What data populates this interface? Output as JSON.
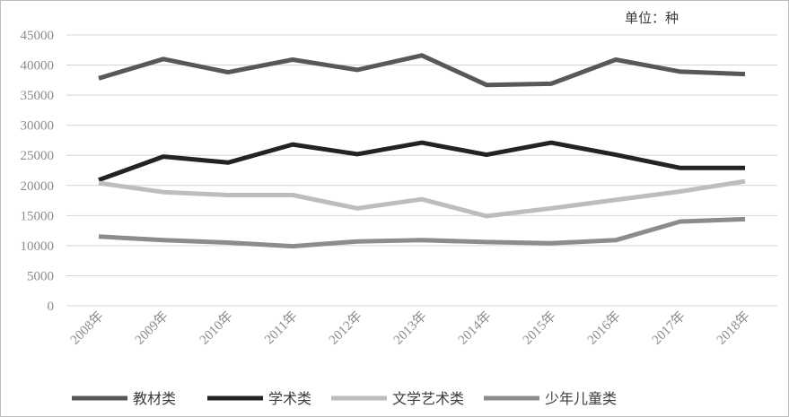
{
  "chart_data": {
    "type": "line",
    "title": "",
    "unit_label": "单位：种",
    "xlabel": "",
    "ylabel": "",
    "ylim": [
      0,
      45000
    ],
    "yticks": [
      0,
      5000,
      10000,
      15000,
      20000,
      25000,
      30000,
      35000,
      40000,
      45000
    ],
    "grid": true,
    "legend_position": "bottom",
    "categories": [
      "2008年",
      "2009年",
      "2010年",
      "2011年",
      "2012年",
      "2013年",
      "2014年",
      "2015年",
      "2016年",
      "2017年",
      "2018年"
    ],
    "series": [
      {
        "name": "教材类",
        "color": "#58585a",
        "values": [
          37800,
          41000,
          38800,
          40900,
          39200,
          41600,
          36700,
          36900,
          40900,
          38900,
          38500
        ]
      },
      {
        "name": "学术类",
        "color": "#232323",
        "values": [
          20900,
          24800,
          23800,
          26800,
          25200,
          27100,
          25100,
          27100,
          25100,
          22900,
          22900
        ]
      },
      {
        "name": "文学艺术类",
        "color": "#bdbdbd",
        "values": [
          20400,
          18900,
          18400,
          18400,
          16200,
          17700,
          14900,
          16200,
          17600,
          19000,
          20700
        ]
      },
      {
        "name": "少年儿童类",
        "color": "#8c8c8c",
        "values": [
          11500,
          10900,
          10500,
          9900,
          10700,
          10900,
          10600,
          10400,
          10900,
          14000,
          14400
        ]
      }
    ]
  }
}
